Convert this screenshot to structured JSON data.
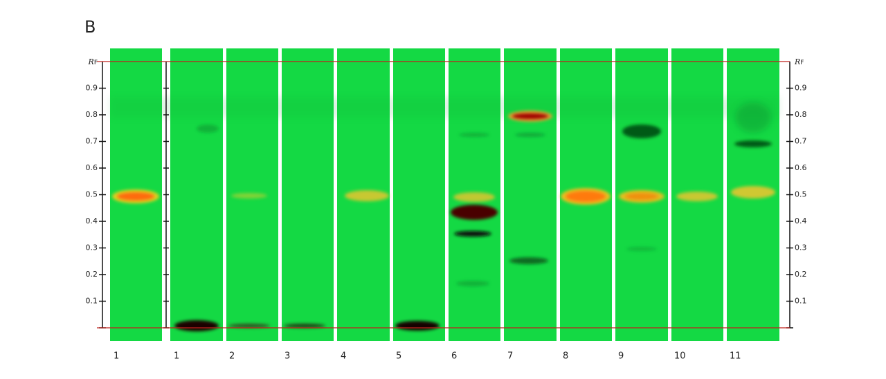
{
  "panel_label": "B",
  "rf_label": {
    "r": "R",
    "f": "F"
  },
  "rf_ticks": [
    0.1,
    0.2,
    0.3,
    0.4,
    0.5,
    0.6,
    0.7,
    0.8,
    0.9
  ],
  "lanes": [
    "1",
    "1",
    "2",
    "3",
    "4",
    "5",
    "6",
    "7",
    "8",
    "9",
    "10",
    "11"
  ]
}
